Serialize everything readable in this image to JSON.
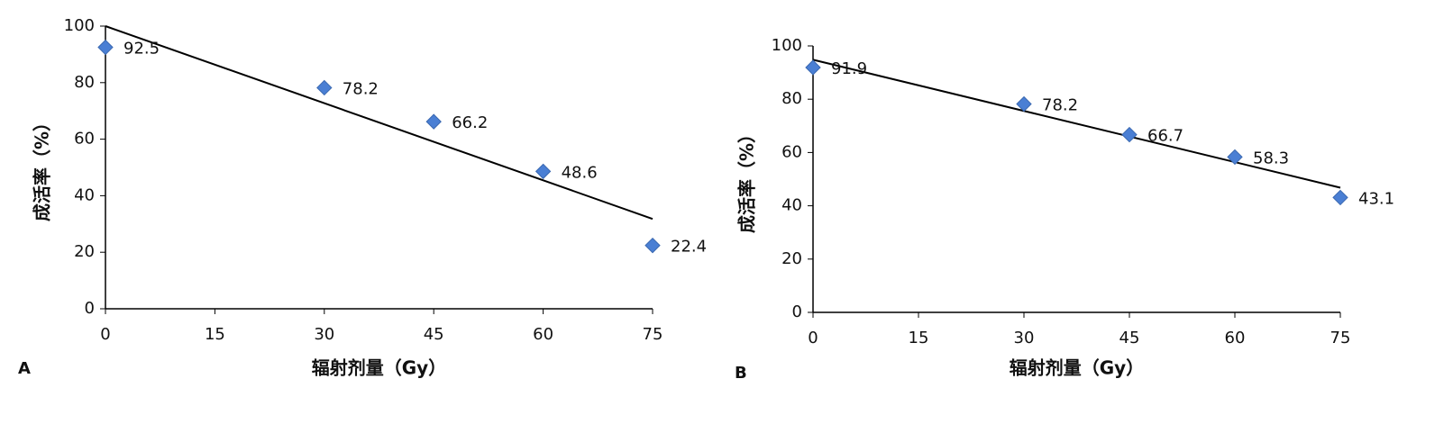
{
  "chart_data": [
    {
      "type": "scatter",
      "panel_label": "A",
      "x_label": "辐射剂量（Gy）",
      "y_label": "成活率（%）",
      "x": [
        0,
        30,
        45,
        60,
        75
      ],
      "values": [
        92.5,
        78.2,
        66.2,
        48.6,
        22.4
      ],
      "color": "#4a7fd4",
      "trendline": {
        "x": [
          0,
          75
        ],
        "y": [
          100,
          31.8
        ],
        "color": "#000000"
      },
      "xlim": [
        0,
        75
      ],
      "xticks": [
        0,
        15,
        30,
        45,
        60,
        75
      ],
      "ylim": [
        0,
        100
      ],
      "yticks": [
        0,
        20,
        40,
        60,
        80,
        100
      ],
      "grid": false
    },
    {
      "type": "scatter",
      "panel_label": "B",
      "x_label": "辐射剂量（Gy）",
      "y_label": "成活率（%）",
      "x": [
        0,
        30,
        45,
        60,
        75
      ],
      "values": [
        91.9,
        78.2,
        66.7,
        58.3,
        43.1
      ],
      "color": "#4a7fd4",
      "trendline": {
        "x": [
          0,
          75
        ],
        "y": [
          94.8,
          46.8
        ],
        "color": "#000000"
      },
      "xlim": [
        0,
        75
      ],
      "xticks": [
        0,
        15,
        30,
        45,
        60,
        75
      ],
      "ylim": [
        0,
        100
      ],
      "yticks": [
        0,
        20,
        40,
        60,
        80,
        100
      ],
      "grid": false
    }
  ]
}
